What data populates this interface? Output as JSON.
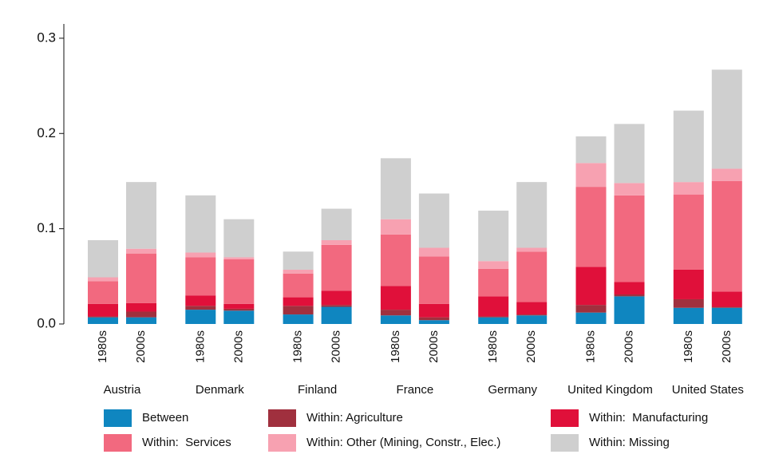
{
  "chart_data": {
    "type": "bar",
    "stacked": true,
    "groups": [
      "Austria",
      "Denmark",
      "Finland",
      "France",
      "Germany",
      "United Kingdom",
      "United States"
    ],
    "categories": [
      "1980s",
      "2000s",
      "1980s",
      "2000s",
      "1980s",
      "2000s",
      "1980s",
      "2000s",
      "1980s",
      "2000s",
      "1980s",
      "2000s",
      "1980s",
      "2000s"
    ],
    "series": [
      {
        "name": "Between",
        "color": "#0f86c0",
        "values": [
          0.007,
          0.007,
          0.015,
          0.014,
          0.01,
          0.018,
          0.009,
          0.004,
          0.007,
          0.009,
          0.012,
          0.029,
          0.017,
          0.017
        ]
      },
      {
        "name": "Within: Agriculture",
        "color": "#a0303e",
        "values": [
          0.001,
          0.006,
          0.004,
          0.002,
          0.009,
          0.002,
          0.006,
          0.003,
          0.001,
          0.001,
          0.008,
          0.002,
          0.009,
          0.001
        ]
      },
      {
        "name": "Within:  Manufacturing",
        "color": "#e0103a",
        "values": [
          0.013,
          0.009,
          0.011,
          0.005,
          0.009,
          0.015,
          0.025,
          0.014,
          0.021,
          0.013,
          0.04,
          0.013,
          0.031,
          0.016
        ]
      },
      {
        "name": "Within:  Services",
        "color": "#f2697f",
        "values": [
          0.024,
          0.052,
          0.04,
          0.047,
          0.025,
          0.048,
          0.054,
          0.05,
          0.029,
          0.053,
          0.084,
          0.091,
          0.079,
          0.116
        ]
      },
      {
        "name": "Within: Other (Mining, Constr., Elec.)",
        "color": "#f7a1b1",
        "values": [
          0.004,
          0.005,
          0.005,
          0.002,
          0.004,
          0.005,
          0.016,
          0.009,
          0.008,
          0.004,
          0.025,
          0.013,
          0.013,
          0.013
        ]
      },
      {
        "name": "Within: Missing",
        "color": "#cfcfcf",
        "values": [
          0.039,
          0.07,
          0.06,
          0.04,
          0.019,
          0.033,
          0.064,
          0.057,
          0.053,
          0.069,
          0.028,
          0.062,
          0.075,
          0.104
        ]
      }
    ],
    "ylim": [
      0,
      0.315
    ],
    "yticks": [
      {
        "value": 0,
        "label": "0.0"
      },
      0.1,
      0.2,
      0.3
    ],
    "legend": "bottom"
  }
}
